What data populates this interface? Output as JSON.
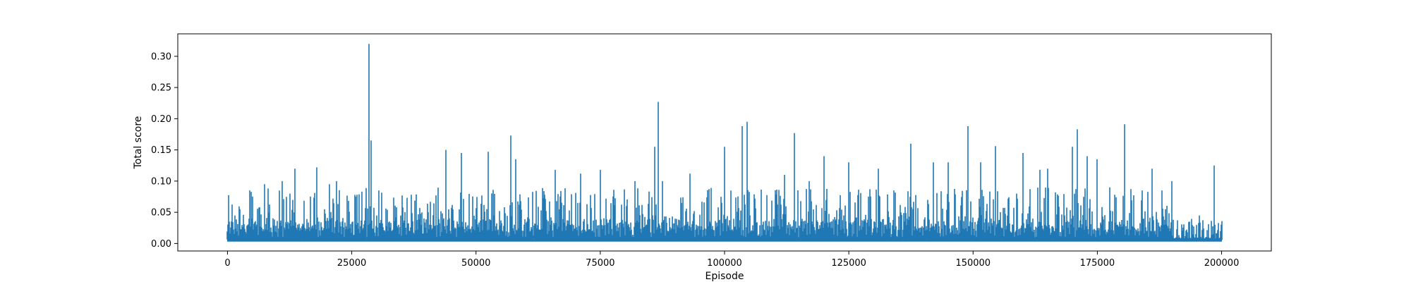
{
  "chart_data": {
    "type": "line",
    "title": "",
    "xlabel": "Episode",
    "ylabel": "Total score",
    "xlim": [
      -10000,
      210000
    ],
    "ylim": [
      -0.012,
      0.336
    ],
    "xticks": [
      0,
      25000,
      50000,
      75000,
      100000,
      125000,
      150000,
      175000,
      200000
    ],
    "yticks": [
      0.0,
      0.05,
      0.1,
      0.15,
      0.2,
      0.25,
      0.3
    ],
    "xtick_labels": [
      "0",
      "25000",
      "50000",
      "75000",
      "100000",
      "125000",
      "150000",
      "175000",
      "200000"
    ],
    "ytick_labels": [
      "0.00",
      "0.05",
      "0.10",
      "0.15",
      "0.20",
      "0.25",
      "0.30"
    ],
    "grid": false,
    "series": [
      {
        "color": "#1f77b4",
        "x_range": [
          0,
          200000
        ],
        "baseline": 0.004,
        "peaks": [
          [
            300,
            0.035
          ],
          [
            1500,
            0.045
          ],
          [
            2500,
            0.055
          ],
          [
            4500,
            0.085
          ],
          [
            7500,
            0.095
          ],
          [
            11000,
            0.1
          ],
          [
            12500,
            0.08
          ],
          [
            13500,
            0.12
          ],
          [
            18000,
            0.122
          ],
          [
            20500,
            0.095
          ],
          [
            22000,
            0.1
          ],
          [
            26000,
            0.078
          ],
          [
            28500,
            0.32
          ],
          [
            28900,
            0.165
          ],
          [
            30500,
            0.085
          ],
          [
            37000,
            0.078
          ],
          [
            44000,
            0.15
          ],
          [
            47000,
            0.145
          ],
          [
            52500,
            0.147
          ],
          [
            57000,
            0.173
          ],
          [
            58000,
            0.135
          ],
          [
            66000,
            0.118
          ],
          [
            71000,
            0.112
          ],
          [
            75000,
            0.118
          ],
          [
            82000,
            0.1
          ],
          [
            86000,
            0.155
          ],
          [
            86700,
            0.227
          ],
          [
            87500,
            0.1
          ],
          [
            93000,
            0.112
          ],
          [
            100000,
            0.155
          ],
          [
            103500,
            0.188
          ],
          [
            104500,
            0.195
          ],
          [
            112000,
            0.11
          ],
          [
            114000,
            0.177
          ],
          [
            117000,
            0.1
          ],
          [
            120000,
            0.14
          ],
          [
            125000,
            0.13
          ],
          [
            131000,
            0.12
          ],
          [
            137500,
            0.16
          ],
          [
            142000,
            0.13
          ],
          [
            145000,
            0.13
          ],
          [
            149000,
            0.188
          ],
          [
            151500,
            0.13
          ],
          [
            154500,
            0.156
          ],
          [
            160000,
            0.145
          ],
          [
            163500,
            0.118
          ],
          [
            165000,
            0.12
          ],
          [
            170000,
            0.155
          ],
          [
            171000,
            0.183
          ],
          [
            173000,
            0.14
          ],
          [
            175000,
            0.135
          ],
          [
            177500,
            0.09
          ],
          [
            180500,
            0.191
          ],
          [
            184000,
            0.085
          ],
          [
            186000,
            0.12
          ],
          [
            188000,
            0.085
          ],
          [
            190000,
            0.1
          ],
          [
            193500,
            0.035
          ],
          [
            195500,
            0.045
          ],
          [
            198500,
            0.125
          ],
          [
            199800,
            0.02
          ]
        ],
        "typical_peak_range": [
          0.02,
          0.09
        ],
        "tail_start": 190000,
        "tail_peak_range": [
          0.008,
          0.04
        ]
      }
    ]
  }
}
